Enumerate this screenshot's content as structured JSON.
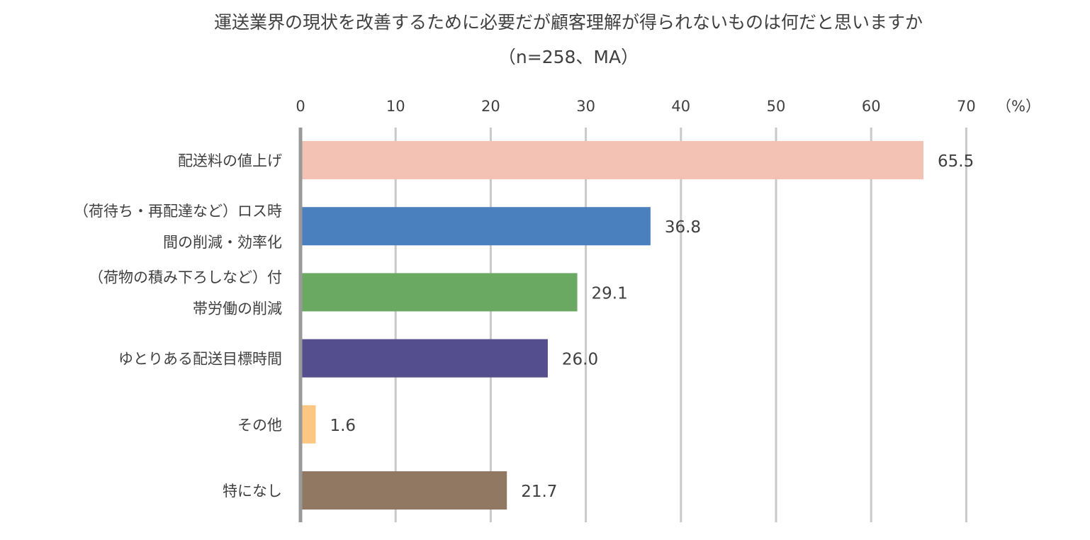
{
  "chart_data": {
    "type": "bar",
    "orientation": "horizontal",
    "title": "運送業界の現状を改善するために必要だが顧客理解が得られないものは何だと思いますか",
    "subtitle": "（n=258、MA）",
    "unit_label": "（%）",
    "xlim": [
      0,
      70
    ],
    "xticks": [
      0,
      10,
      20,
      30,
      40,
      50,
      60,
      70
    ],
    "grid": true,
    "categories": [
      [
        "配送料の値上げ"
      ],
      [
        "（荷待ち・再配達など）ロス時",
        "間の削減・効率化"
      ],
      [
        "（荷物の積み下ろしなど）付",
        "帯労働の削減"
      ],
      [
        "ゆとりある配送目標時間"
      ],
      [
        "その他"
      ],
      [
        "特になし"
      ]
    ],
    "values": [
      65.5,
      36.8,
      29.1,
      26.0,
      1.6,
      21.7
    ],
    "value_labels": [
      "65.5",
      "36.8",
      "29.1",
      "26.0",
      "1.6",
      "21.7"
    ],
    "colors": [
      "#f4c2b4",
      "#4a80be",
      "#6aa962",
      "#544d8e",
      "#fcc783",
      "#917863"
    ],
    "grid_color": "#c9c9c9",
    "axis_color": "#999999"
  }
}
